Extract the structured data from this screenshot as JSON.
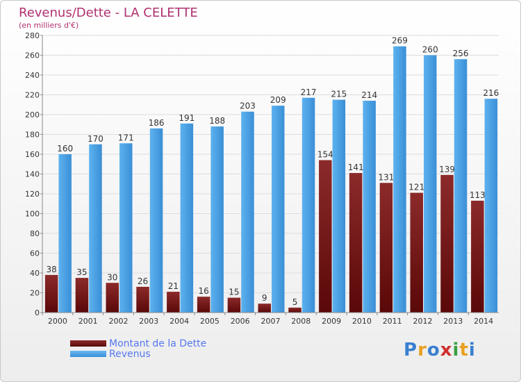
{
  "chart_data": {
    "type": "bar",
    "title": "Revenus/Dette - LA CELETTE",
    "subtitle": "(en milliers d'€)",
    "categories": [
      "2000",
      "2001",
      "2002",
      "2003",
      "2004",
      "2005",
      "2006",
      "2007",
      "2008",
      "2009",
      "2010",
      "2011",
      "2012",
      "2013",
      "2014"
    ],
    "series": [
      {
        "name": "Montant de la Dette",
        "color": "#7a1515",
        "values": [
          38,
          35,
          30,
          26,
          21,
          16,
          15,
          9,
          5,
          154,
          141,
          131,
          121,
          139,
          113
        ]
      },
      {
        "name": "Revenus",
        "color": "#4aa3e8",
        "values": [
          160,
          170,
          171,
          186,
          191,
          188,
          203,
          209,
          217,
          215,
          214,
          269,
          260,
          256,
          216
        ]
      }
    ],
    "ylim": [
      0,
      280
    ],
    "yticks": [
      0,
      20,
      40,
      60,
      80,
      100,
      120,
      140,
      160,
      180,
      200,
      220,
      240,
      260,
      280
    ],
    "grid": true,
    "legend": "bottom-left"
  },
  "logo": {
    "text": "Proxiti",
    "colors": [
      "#3a7fd0",
      "#e8a020",
      "#d03030",
      "#3aa040"
    ]
  }
}
